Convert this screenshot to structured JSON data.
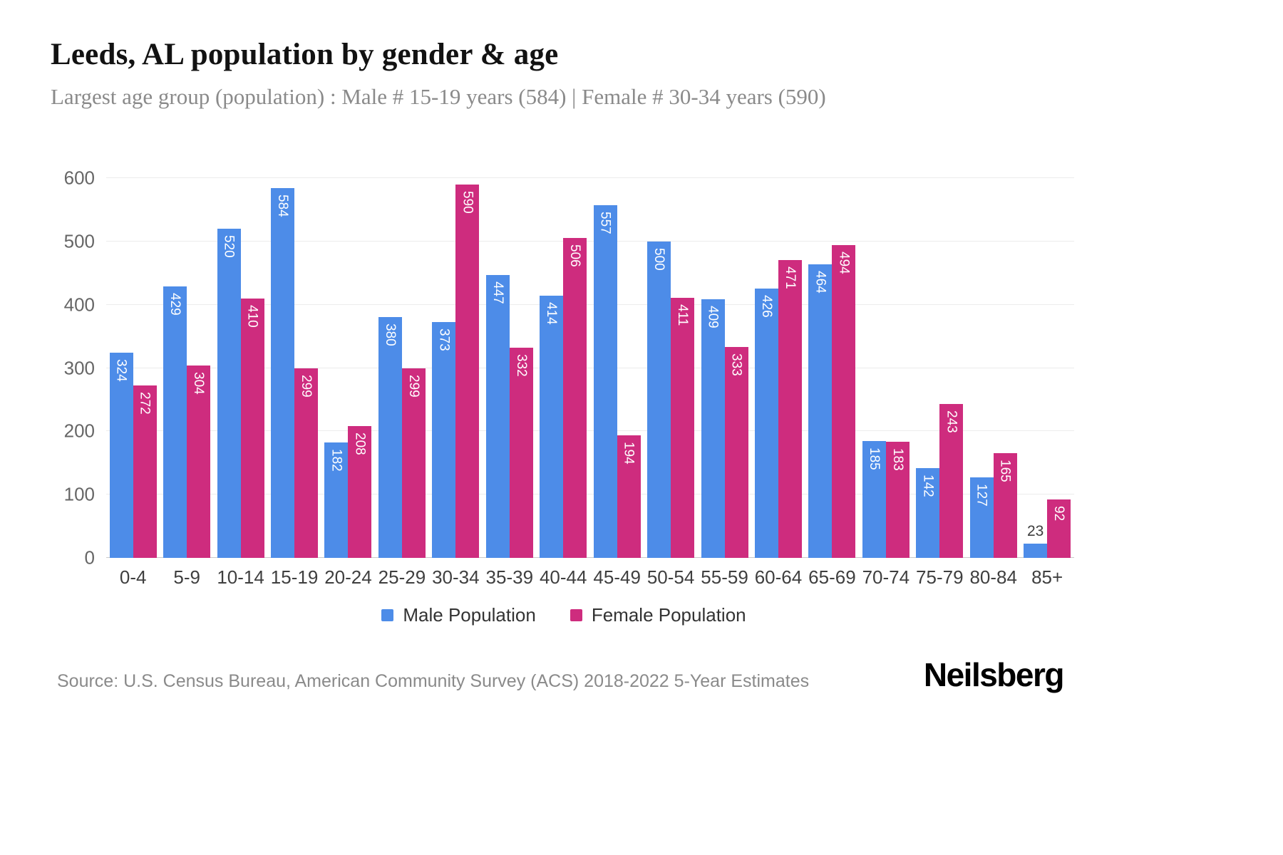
{
  "title": "Leeds, AL population by gender & age",
  "subtitle": "Largest age group (population) : Male # 15-19 years (584) | Female # 30-34 years (590)",
  "source": "Source: U.S. Census Bureau, American Community Survey (ACS) 2018-2022 5-Year Estimates",
  "logo": "Neilsberg",
  "colors": {
    "male": "#4d8ce8",
    "female": "#ce2c7e",
    "grid": "#ececec",
    "axis_text": "#666666"
  },
  "chart_data": {
    "type": "bar",
    "title": "Leeds, AL population by gender & age",
    "categories": [
      "0-4",
      "5-9",
      "10-14",
      "15-19",
      "20-24",
      "25-29",
      "30-34",
      "35-39",
      "40-44",
      "45-49",
      "50-54",
      "55-59",
      "60-64",
      "65-69",
      "70-74",
      "75-79",
      "80-84",
      "85+"
    ],
    "series": [
      {
        "name": "Male Population",
        "color": "#4d8ce8",
        "values": [
          324,
          429,
          520,
          584,
          182,
          380,
          373,
          447,
          414,
          557,
          500,
          409,
          426,
          464,
          185,
          142,
          127,
          23
        ]
      },
      {
        "name": "Female Population",
        "color": "#ce2c7e",
        "values": [
          272,
          304,
          410,
          299,
          208,
          299,
          590,
          332,
          506,
          194,
          411,
          333,
          471,
          494,
          183,
          243,
          165,
          92
        ]
      }
    ],
    "xlabel": "",
    "ylabel": "",
    "ylim": [
      0,
      600
    ],
    "yticks": [
      0,
      100,
      200,
      300,
      400,
      500,
      600
    ],
    "grid": true,
    "legend_position": "bottom"
  }
}
